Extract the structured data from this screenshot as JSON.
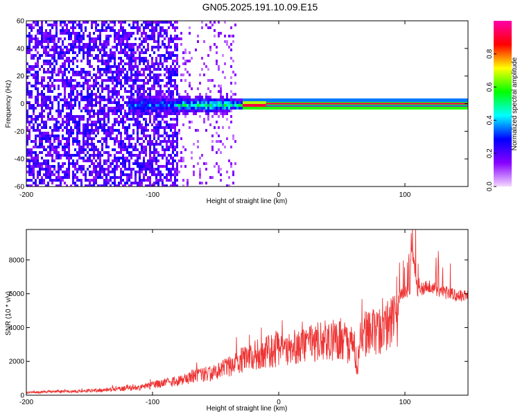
{
  "window": {
    "title": "GN05.2025.191.10.09.E15"
  },
  "chart_data": [
    {
      "type": "heatmap",
      "title": "GN05.2025.191.10.09.E15",
      "xlabel": "Height of straight line (km)",
      "ylabel": "Frequency (Hz)",
      "xlim": [
        -200,
        150
      ],
      "ylim": [
        -60,
        60
      ],
      "xticks": [
        -200,
        -100,
        0,
        100
      ],
      "xtick_labels": [
        "-200",
        "-100",
        "0",
        "100"
      ],
      "yticks": [
        -60,
        -40,
        -20,
        0,
        20,
        40,
        60
      ],
      "ytick_labels": [
        "-60",
        "-40",
        "-20",
        "0",
        "20",
        "40",
        "60"
      ],
      "colorbar": {
        "label": "Normalized spectral amplitude",
        "range": [
          0,
          1
        ],
        "ticks": [
          0.0,
          0.2,
          0.4,
          0.6,
          0.8
        ],
        "tick_labels": [
          "0.0",
          "0.2",
          "0.4",
          "0.6",
          "0.8"
        ],
        "colors": [
          "#f4d8ff",
          "#8800ff",
          "#0000ff",
          "#00ffff",
          "#00ff00",
          "#ffff00",
          "#ff0000",
          "#ff00aa"
        ]
      },
      "features": [
        {
          "name": "broadband noise",
          "x_range": [
            -200,
            -80
          ],
          "y_range": [
            -60,
            60
          ],
          "amplitude": 0.2
        },
        {
          "name": "sparse noise",
          "x_range": [
            -80,
            -35
          ],
          "y_range": [
            -60,
            60
          ],
          "amplitude": 0.1
        },
        {
          "name": "tone band",
          "x_range": [
            -120,
            150
          ],
          "center_frequency": 0,
          "amplitude": 1.0
        }
      ]
    },
    {
      "type": "line",
      "xlabel": "Height of straight line (km)",
      "ylabel": "SNR (10 * v/v)",
      "xlim": [
        -200,
        150
      ],
      "ylim": [
        0,
        9800
      ],
      "xticks": [
        -200,
        -100,
        0,
        100
      ],
      "xtick_labels": [
        "-200",
        "-100",
        "0",
        "100"
      ],
      "yticks": [
        0,
        2000,
        4000,
        6000,
        8000
      ],
      "ytick_labels": [
        "0",
        "2000",
        "4000",
        "6000",
        "8000"
      ],
      "color": "#ee3333",
      "series": [
        {
          "x": [
            -200,
            -190,
            -180,
            -170,
            -160,
            -150,
            -140,
            -130,
            -120,
            -110,
            -100,
            -90,
            -80,
            -70,
            -60,
            -50,
            -40,
            -30,
            -20,
            -10,
            0,
            10,
            20,
            30,
            40,
            50,
            55,
            60,
            62,
            65,
            70,
            75,
            80,
            85,
            90,
            95,
            100,
            104,
            105,
            110,
            120,
            130,
            140,
            150
          ],
          "values": [
            200,
            250,
            300,
            300,
            300,
            350,
            400,
            500,
            550,
            650,
            800,
            1000,
            1200,
            1500,
            1700,
            1800,
            2300,
            2800,
            3200,
            3500,
            3700,
            3900,
            4100,
            4300,
            4500,
            4600,
            4000,
            4300,
            2000,
            4500,
            5000,
            5300,
            5200,
            5500,
            6000,
            6100,
            6500,
            6600,
            9800,
            6600,
            6800,
            6500,
            6300,
            6200
          ]
        }
      ]
    }
  ]
}
